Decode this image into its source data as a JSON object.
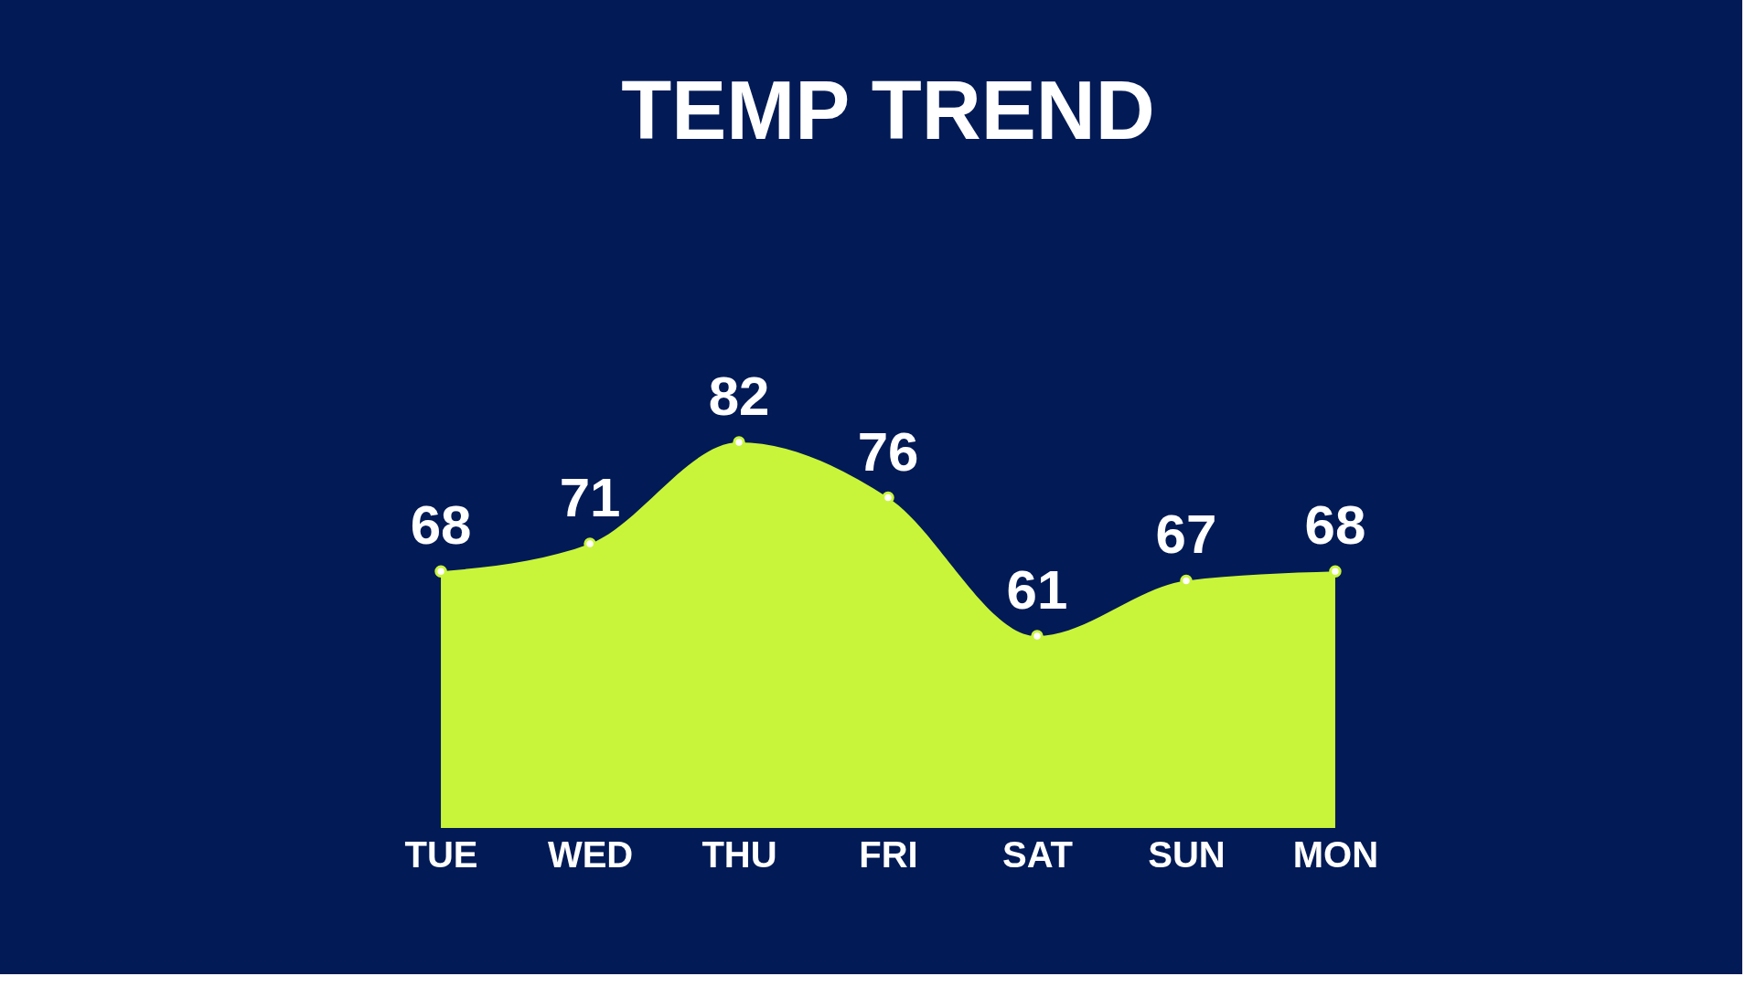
{
  "chart_data": {
    "type": "area",
    "title": "TEMP TREND",
    "categories": [
      "TUE",
      "WED",
      "THU",
      "FRI",
      "SAT",
      "SUN",
      "MON"
    ],
    "series": [
      {
        "color": "#c8f53a",
        "values": [
          68,
          71,
          82,
          76,
          61,
          67,
          68
        ]
      }
    ],
    "tick_labels": "x",
    "data_labels": true,
    "marker": "circle",
    "grid": false
  }
}
